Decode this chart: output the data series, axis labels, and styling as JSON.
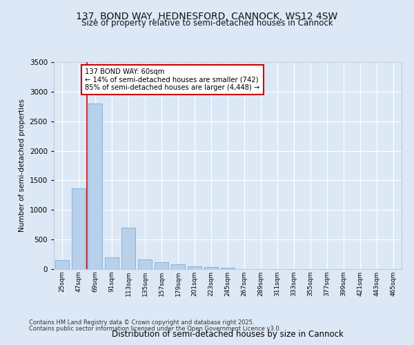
{
  "title1": "137, BOND WAY, HEDNESFORD, CANNOCK, WS12 4SW",
  "title2": "Size of property relative to semi-detached houses in Cannock",
  "xlabel": "Distribution of semi-detached houses by size in Cannock",
  "ylabel": "Number of semi-detached properties",
  "categories": [
    "25sqm",
    "47sqm",
    "69sqm",
    "91sqm",
    "113sqm",
    "135sqm",
    "157sqm",
    "179sqm",
    "201sqm",
    "223sqm",
    "245sqm",
    "267sqm",
    "289sqm",
    "311sqm",
    "333sqm",
    "355sqm",
    "377sqm",
    "399sqm",
    "421sqm",
    "443sqm",
    "465sqm"
  ],
  "values": [
    150,
    1370,
    2800,
    200,
    700,
    160,
    120,
    80,
    50,
    30,
    20,
    0,
    0,
    0,
    0,
    0,
    0,
    0,
    0,
    0,
    0
  ],
  "bar_color": "#b8d0ea",
  "bar_edge_color": "#7aadd4",
  "vline_color": "#cc0000",
  "vline_pos": 1.5,
  "annotation_text": "137 BOND WAY: 60sqm\n← 14% of semi-detached houses are smaller (742)\n85% of semi-detached houses are larger (4,448) →",
  "annotation_box_facecolor": "#ffffff",
  "annotation_box_edgecolor": "#cc0000",
  "ylim": [
    0,
    3500
  ],
  "yticks": [
    0,
    500,
    1000,
    1500,
    2000,
    2500,
    3000,
    3500
  ],
  "plot_bg": "#dce8f5",
  "fig_bg": "#dce8f5",
  "footer1": "Contains HM Land Registry data © Crown copyright and database right 2025.",
  "footer2": "Contains public sector information licensed under the Open Government Licence v3.0."
}
